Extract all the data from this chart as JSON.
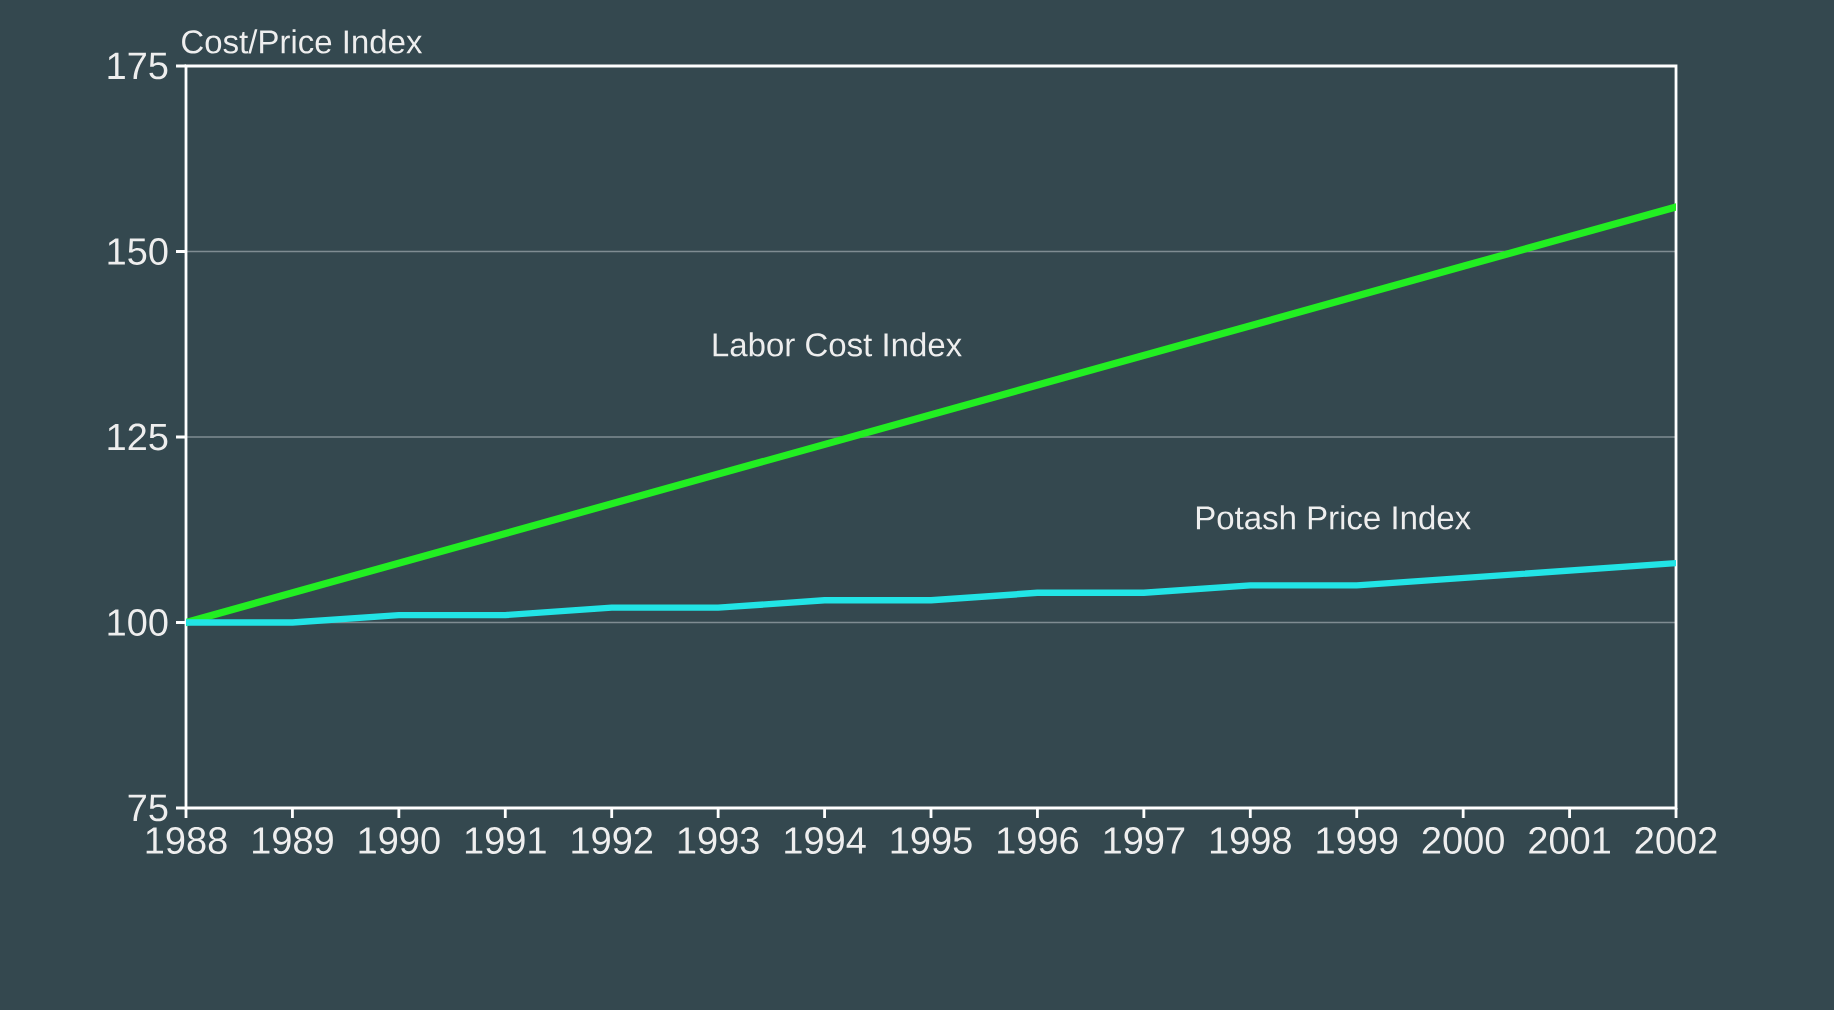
{
  "chart_data": {
    "type": "line",
    "ylabel": "Cost/Price Index",
    "x": [
      1988,
      1989,
      1990,
      1991,
      1992,
      1993,
      1994,
      1995,
      1996,
      1997,
      1998,
      1999,
      2000,
      2001,
      2002
    ],
    "series": [
      {
        "name": "Labor Cost Index",
        "color": "#22ee22",
        "values": [
          100,
          104,
          108,
          112,
          116,
          120,
          124,
          128,
          132,
          136,
          140,
          144,
          148,
          152,
          156
        ]
      },
      {
        "name": "Potash Price Index",
        "color": "#22e4e6",
        "values": [
          100,
          100,
          101,
          101,
          102,
          102,
          103,
          103,
          104,
          104,
          105,
          105,
          106,
          107,
          108
        ]
      }
    ],
    "xlim": [
      1988,
      2002
    ],
    "ylim": [
      75,
      175
    ],
    "xticks": [
      1988,
      1989,
      1990,
      1991,
      1992,
      1993,
      1994,
      1995,
      1996,
      1997,
      1998,
      1999,
      2000,
      2001,
      2002
    ],
    "yticks": [
      75,
      100,
      125,
      150,
      175
    ],
    "grid": "y",
    "marker": "none",
    "line_style": "solid"
  }
}
